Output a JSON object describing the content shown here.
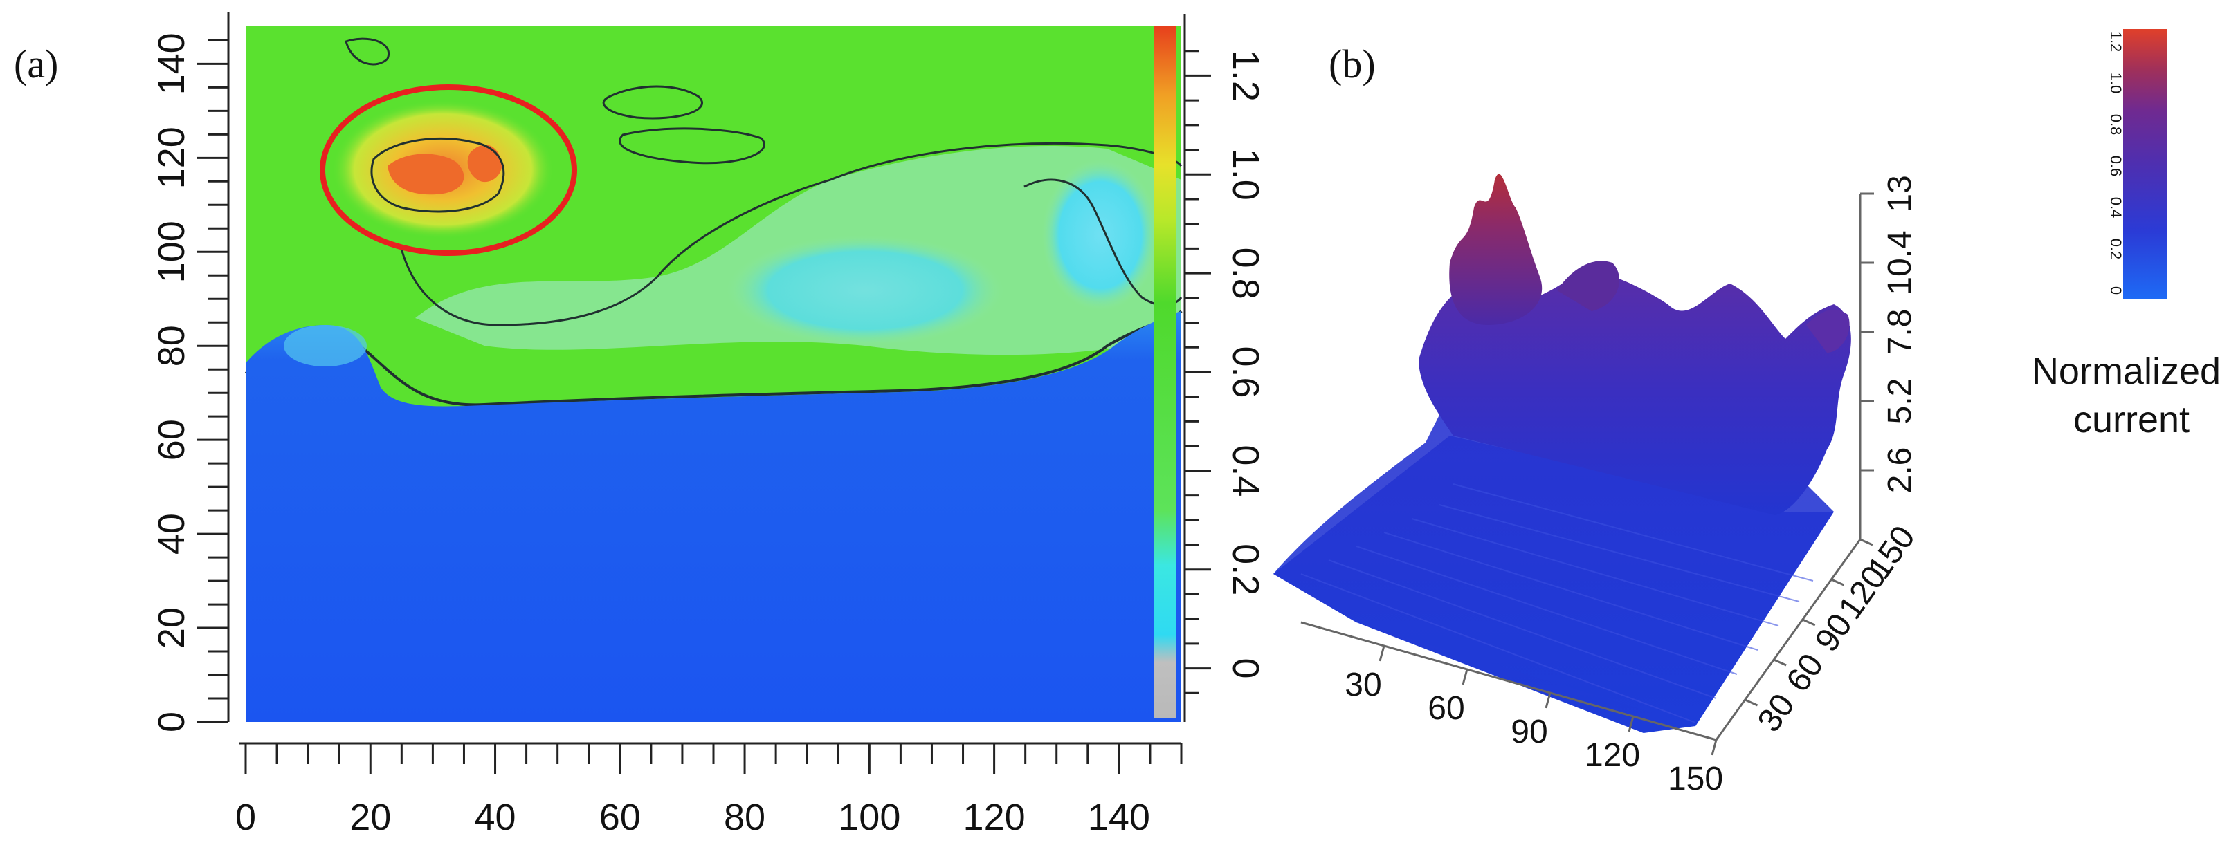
{
  "chart_data": [
    {
      "panel_label": "(a)",
      "type": "heatmap",
      "x_ticks": [
        "0",
        "20",
        "40",
        "60",
        "80",
        "100",
        "120",
        "140"
      ],
      "y_ticks": [
        "0",
        "20",
        "40",
        "60",
        "80",
        "100",
        "120",
        "140"
      ],
      "xlim": [
        0,
        150
      ],
      "ylim": [
        0,
        148
      ],
      "colorbar_ticks": [
        "0",
        "0.2",
        "0.4",
        "0.6",
        "0.8",
        "1.0",
        "1.2"
      ],
      "colorbar_range": [
        -0.1,
        1.3
      ],
      "colormap": [
        "#1e52f0",
        "#1e7df2",
        "#2fe6ea",
        "#7ee84a",
        "#5ae12f",
        "#e7e71f",
        "#f2a21a",
        "#e63a1a"
      ],
      "regions": [
        {
          "level": "low",
          "value": 0.05,
          "y_range": [
            0,
            70
          ],
          "color": "#1c5af2"
        },
        {
          "level": "transition",
          "value": 0.3,
          "y_range": [
            68,
            78
          ],
          "color": "#2ce0ee"
        },
        {
          "level": "medium",
          "value": 0.75,
          "y_range": [
            78,
            148
          ],
          "color": "#58e231"
        },
        {
          "level": "high",
          "value": 1.25,
          "center": [
            32,
            117
          ],
          "color": "#ee6a2a"
        }
      ],
      "highlight": {
        "shape": "circle",
        "center": [
          32,
          118
        ],
        "color": "#e82020"
      }
    },
    {
      "panel_label": "(b)",
      "type": "surface3d",
      "x_ticks": [
        "30",
        "60",
        "90",
        "120",
        "150"
      ],
      "y_ticks": [
        "30",
        "60",
        "90",
        "120",
        "150"
      ],
      "z_ticks": [
        "2.6",
        "5.2",
        "7.8",
        "10.4",
        "13"
      ],
      "colorbar_ticks": [
        "0",
        "0.2",
        "0.4",
        "0.6",
        "0.8",
        "1.0",
        "1.2"
      ],
      "colorbar_label": "Normalized current",
      "colormap": [
        "#1f5ce8",
        "#2a32c8",
        "#4a2aa6",
        "#6a2a8c",
        "#9a2a5a",
        "#d83a2a"
      ],
      "peak_value": 13
    }
  ]
}
